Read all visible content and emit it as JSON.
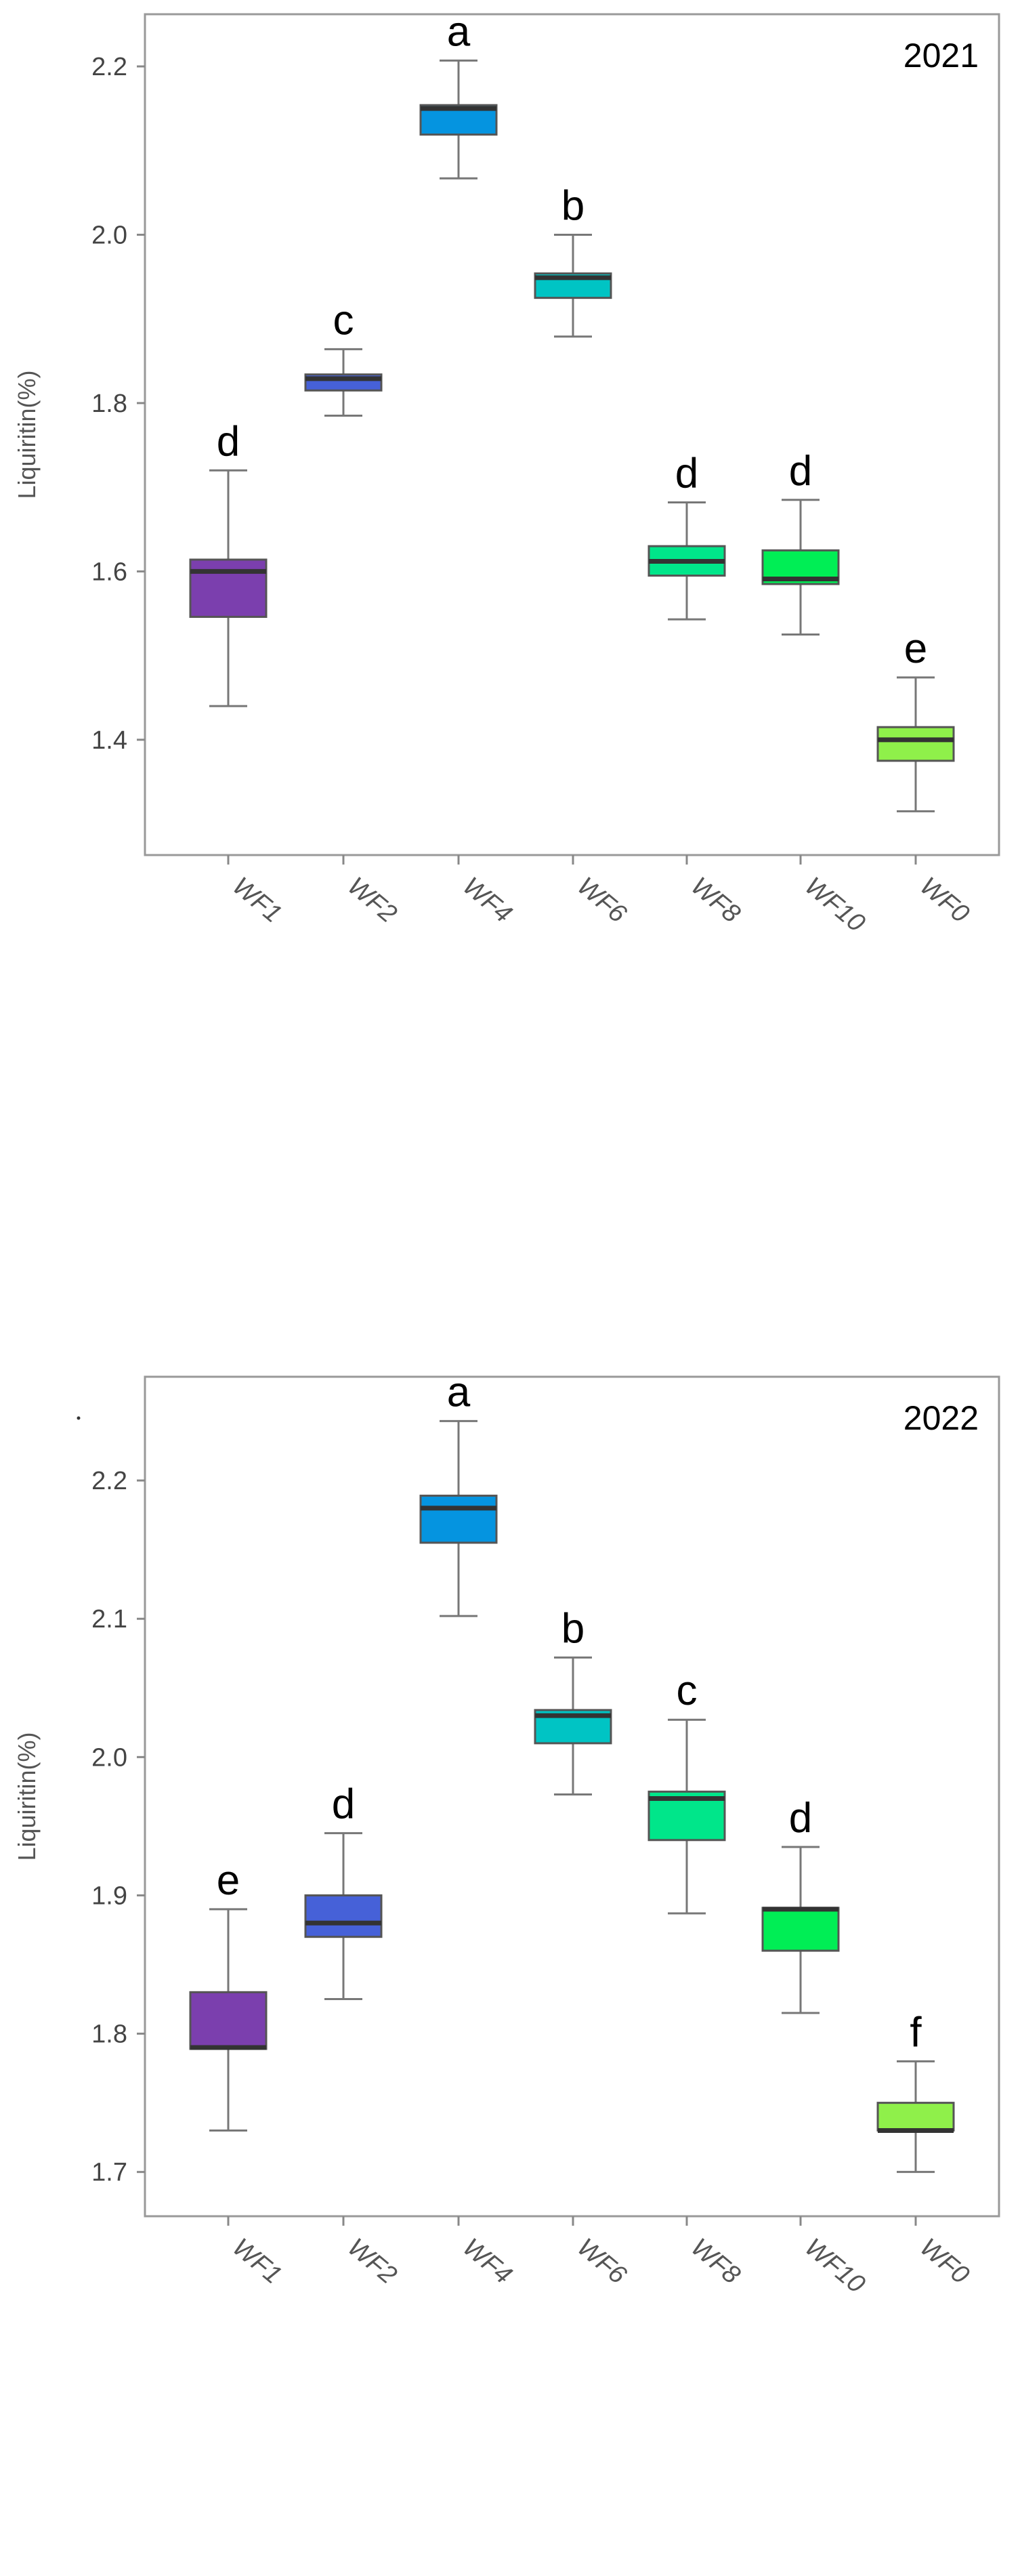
{
  "chart_data": [
    {
      "type": "box",
      "annotation": "2021",
      "ylabel": "Liquiritin(%)",
      "xlabel": "",
      "ylim": [
        1.263,
        2.262
      ],
      "yticks": [
        "1.4",
        "1.6",
        "1.8",
        "2.0",
        "2.2"
      ],
      "grid": false,
      "categories": [
        "WF1",
        "WF2",
        "WF4",
        "WF6",
        "WF8",
        "WF10",
        "WF0"
      ],
      "boxes": [
        {
          "min": 1.44,
          "q1": 1.546,
          "median": 1.6,
          "q3": 1.614,
          "max": 1.72,
          "letter": "d",
          "color": "#7B3FAE"
        },
        {
          "min": 1.785,
          "q1": 1.815,
          "median": 1.829,
          "q3": 1.834,
          "max": 1.864,
          "letter": "c",
          "color": "#4661D8"
        },
        {
          "min": 2.067,
          "q1": 2.119,
          "median": 2.15,
          "q3": 2.154,
          "max": 2.207,
          "letter": "a",
          "color": "#0594E0"
        },
        {
          "min": 1.879,
          "q1": 1.925,
          "median": 1.949,
          "q3": 1.954,
          "max": 2.0,
          "letter": "b",
          "color": "#00C4C4"
        },
        {
          "min": 1.543,
          "q1": 1.595,
          "median": 1.612,
          "q3": 1.63,
          "max": 1.682,
          "letter": "d",
          "color": "#00E68A"
        },
        {
          "min": 1.525,
          "q1": 1.585,
          "median": 1.591,
          "q3": 1.625,
          "max": 1.685,
          "letter": "d",
          "color": "#00EE55"
        },
        {
          "min": 1.315,
          "q1": 1.375,
          "median": 1.4,
          "q3": 1.415,
          "max": 1.474,
          "letter": "e",
          "color": "#8FF04A"
        }
      ]
    },
    {
      "type": "box",
      "annotation": "2022",
      "ylabel": "Liquiritin(%)",
      "xlabel": "",
      "ylim": [
        1.668,
        2.275
      ],
      "yticks": [
        "1.7",
        "1.8",
        "1.9",
        "2.0",
        "2.1",
        "2.2"
      ],
      "grid": false,
      "categories": [
        "WF1",
        "WF2",
        "WF4",
        "WF6",
        "WF8",
        "WF10",
        "WF0"
      ],
      "boxes": [
        {
          "min": 1.73,
          "q1": 1.789,
          "median": 1.79,
          "q3": 1.83,
          "max": 1.89,
          "letter": "e",
          "color": "#7B3FAE"
        },
        {
          "min": 1.825,
          "q1": 1.87,
          "median": 1.88,
          "q3": 1.9,
          "max": 1.945,
          "letter": "d",
          "color": "#4661D8"
        },
        {
          "min": 2.102,
          "q1": 2.155,
          "median": 2.18,
          "q3": 2.189,
          "max": 2.243,
          "letter": "a",
          "color": "#0594E0"
        },
        {
          "min": 1.973,
          "q1": 2.01,
          "median": 2.03,
          "q3": 2.034,
          "max": 2.072,
          "letter": "b",
          "color": "#00C4C4"
        },
        {
          "min": 1.887,
          "q1": 1.94,
          "median": 1.97,
          "q3": 1.975,
          "max": 2.027,
          "letter": "c",
          "color": "#00E68A"
        },
        {
          "min": 1.815,
          "q1": 1.86,
          "median": 1.89,
          "q3": 1.891,
          "max": 1.935,
          "letter": "d",
          "color": "#00EE55"
        },
        {
          "min": 1.7,
          "q1": 1.73,
          "median": 1.73,
          "q3": 1.75,
          "max": 1.78,
          "letter": "f",
          "color": "#8FF04A"
        }
      ]
    }
  ]
}
